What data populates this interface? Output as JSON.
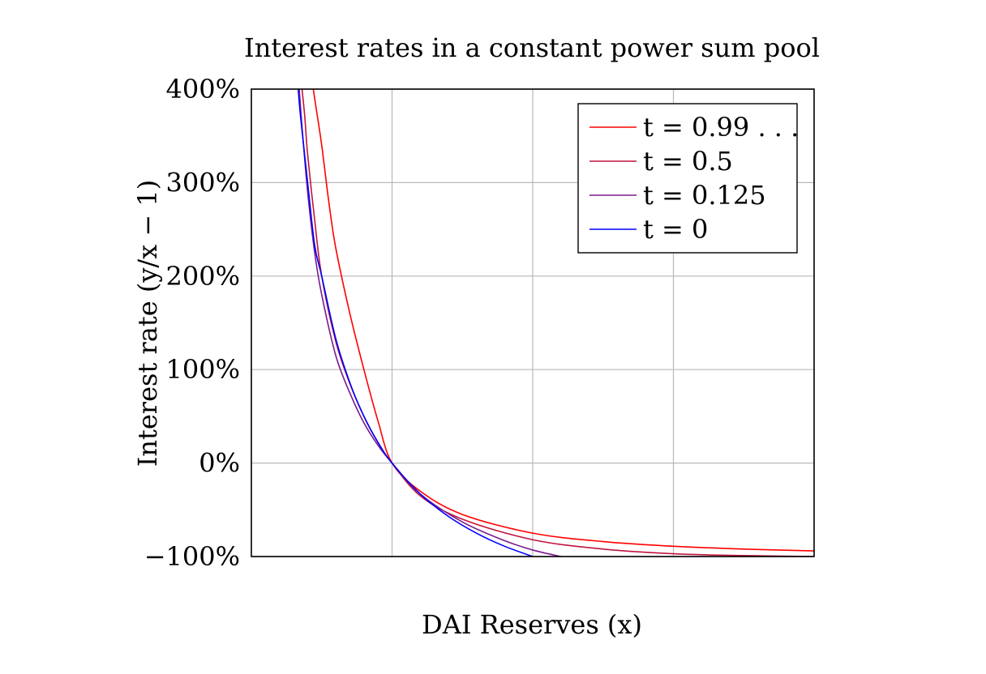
{
  "chart_data": {
    "type": "line",
    "title": "Interest rates in a constant power sum pool",
    "xlabel": "DAI Reserves (x)",
    "ylabel": "Interest rate (y/x − 1)",
    "xlim": [
      0,
      4
    ],
    "ylim": [
      -100,
      400
    ],
    "x_grid": [
      1,
      2,
      3
    ],
    "y_ticks": [
      -100,
      0,
      100,
      200,
      300,
      400
    ],
    "y_tick_labels": [
      "−100%",
      "0%",
      "100%",
      "200%",
      "300%",
      "400%"
    ],
    "grid": true,
    "legend_position": "top-right",
    "series": [
      {
        "name": "t = 0.99 . . .",
        "color": "#ff0000",
        "t": 0.99,
        "x": [
          0.44,
          0.46,
          0.5,
          0.55,
          0.6,
          0.7,
          0.8,
          0.9,
          1,
          1.2,
          1.5,
          2,
          2.5,
          3,
          3.5,
          4
        ],
        "values": [
          400,
          380,
          340,
          280,
          230,
          160,
          100,
          45,
          0,
          -30,
          -55,
          -75,
          -84,
          -89,
          -92,
          -94
        ]
      },
      {
        "name": "t = 0.5",
        "color": "#c0143c",
        "t": 0.5,
        "x": [
          0.36,
          0.38,
          0.4,
          0.45,
          0.5,
          0.6,
          0.7,
          0.8,
          0.9,
          1,
          1.2,
          1.5,
          2,
          2.5,
          3,
          3.5,
          4
        ],
        "values": [
          400,
          370,
          330,
          260,
          200,
          130,
          85,
          50,
          22,
          0,
          -35,
          -60,
          -82,
          -92,
          -97,
          -99,
          -100
        ]
      },
      {
        "name": "t = 0.125",
        "color": "#7a1a8c",
        "t": 0.125,
        "x": [
          0.34,
          0.36,
          0.4,
          0.45,
          0.5,
          0.6,
          0.7,
          0.8,
          0.9,
          1,
          1.2,
          1.5,
          1.8,
          2,
          2.2
        ],
        "values": [
          400,
          360,
          290,
          225,
          180,
          115,
          75,
          43,
          19,
          0,
          -33,
          -63,
          -83,
          -93,
          -100
        ]
      },
      {
        "name": "t = 0",
        "color": "#0000ff",
        "t": 0,
        "x": [
          0.333,
          0.35,
          0.4,
          0.45,
          0.5,
          0.6,
          0.7,
          0.8,
          0.9,
          1,
          1.2,
          1.4,
          1.6,
          1.8,
          2
        ],
        "values": [
          400,
          370,
          300,
          233,
          200,
          133,
          86,
          50,
          22,
          0,
          -33,
          -57,
          -75,
          -89,
          -100
        ]
      }
    ]
  }
}
